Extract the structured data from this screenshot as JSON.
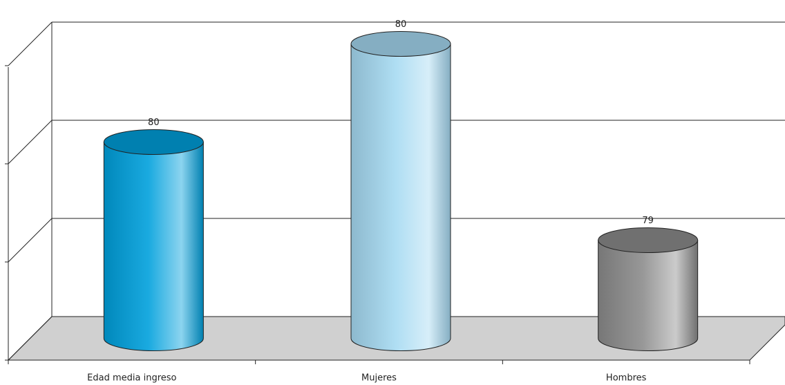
{
  "chart_data": {
    "type": "bar3d",
    "categories": [
      "Edad media ingreso",
      "Mujeres",
      "Hombres"
    ],
    "values": [
      79.5,
      80.0,
      79.0
    ],
    "value_labels": [
      "80",
      "80",
      "79"
    ],
    "colors": [
      "#00a0dc",
      "#a6daf2",
      "#8c8c8c"
    ],
    "ylim": [
      78.5,
      80.0
    ],
    "yticks": [
      78.5,
      79.0,
      79.5,
      80.0
    ],
    "grid": true
  }
}
